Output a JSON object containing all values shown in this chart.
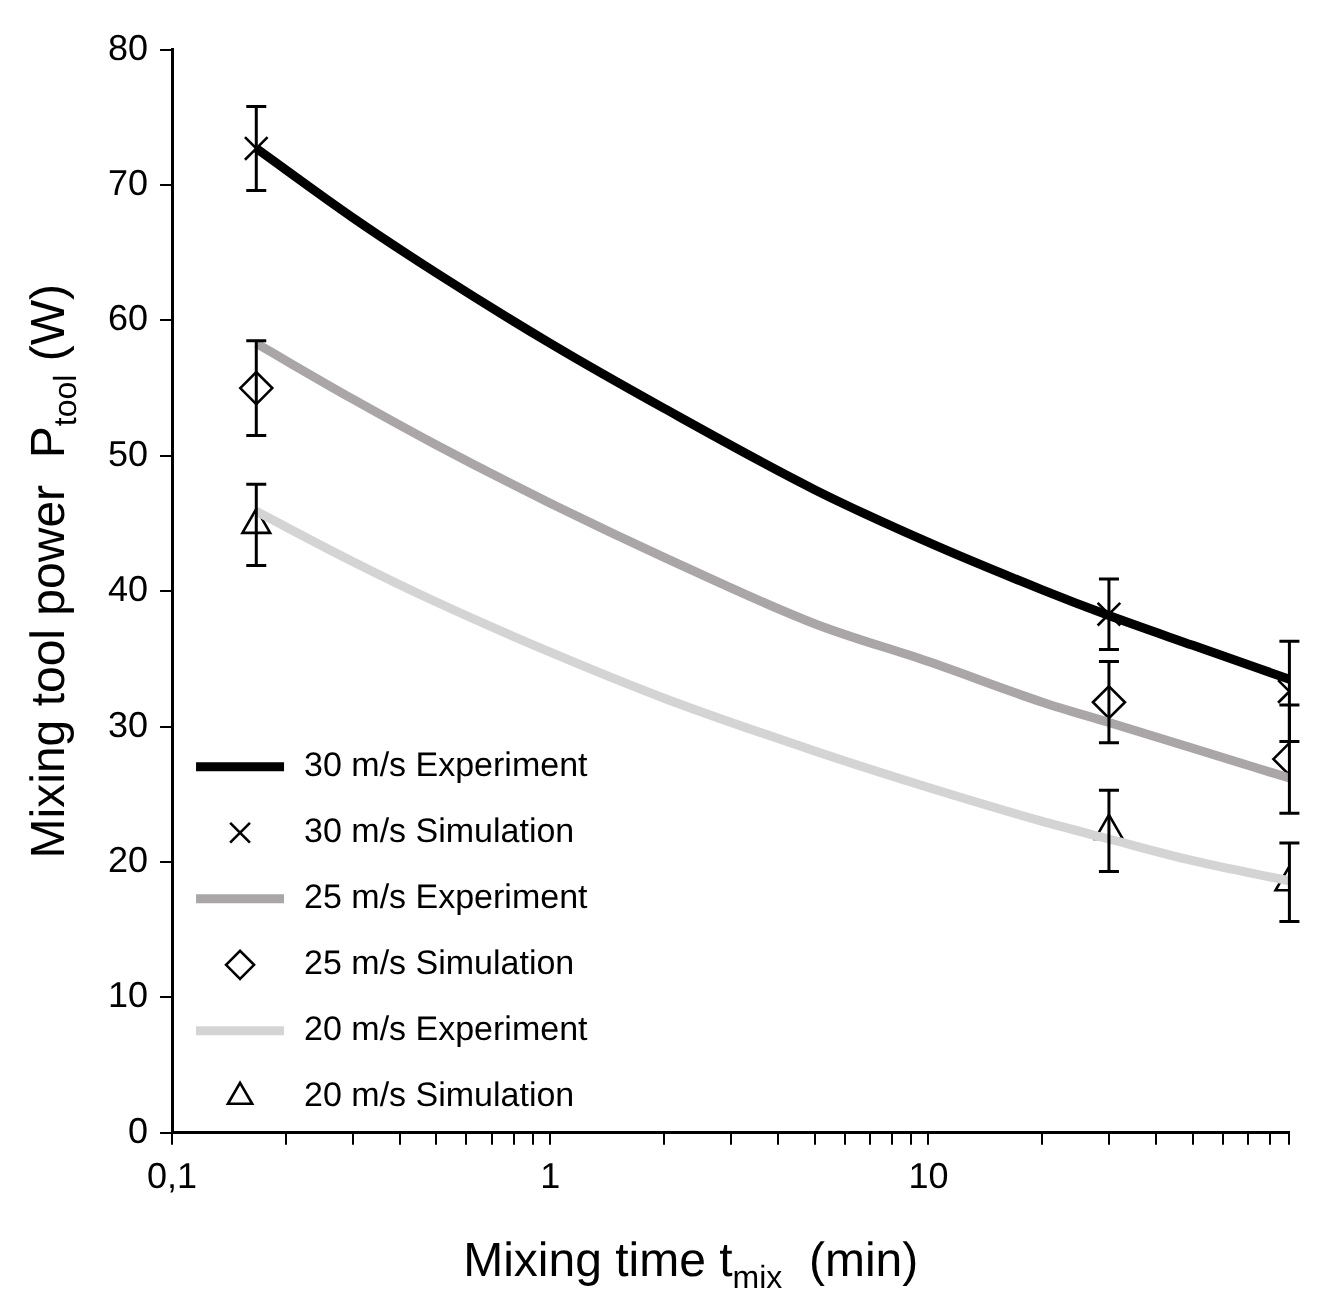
{
  "chart_data": {
    "type": "line",
    "xlabel": "Mixing time t$_{mix}$  (min)",
    "ylabel": "Mixing tool power  P$_{tool}$ (W)",
    "log": "x",
    "grid": false,
    "legend": "bottom left",
    "xlim": [
      0.1,
      90
    ],
    "ylim": [
      0,
      80
    ],
    "xticks": [
      {
        "value": 0.1,
        "label": "0,1"
      },
      {
        "value": 0.2,
        "label": null
      },
      {
        "value": 0.3,
        "label": null
      },
      {
        "value": 0.4,
        "label": null
      },
      {
        "value": 0.5,
        "label": null
      },
      {
        "value": 0.6,
        "label": null
      },
      {
        "value": 0.7,
        "label": null
      },
      {
        "value": 0.8,
        "label": null
      },
      {
        "value": 0.9,
        "label": null
      },
      1,
      {
        "value": 2,
        "label": null
      },
      {
        "value": 3,
        "label": null
      },
      {
        "value": 4,
        "label": null
      },
      {
        "value": 5,
        "label": null
      },
      {
        "value": 6,
        "label": null
      },
      {
        "value": 7,
        "label": null
      },
      {
        "value": 8,
        "label": null
      },
      {
        "value": 9,
        "label": null
      },
      10,
      {
        "value": 20,
        "label": null
      },
      {
        "value": 30,
        "label": null
      },
      {
        "value": 40,
        "label": null
      },
      {
        "value": 50,
        "label": null
      },
      {
        "value": 60,
        "label": null
      },
      {
        "value": 70,
        "label": null
      },
      {
        "value": 80,
        "label": null
      },
      {
        "value": 90,
        "label": null
      }
    ],
    "yticks": [
      0,
      10,
      20,
      30,
      40,
      50,
      60,
      70,
      80
    ],
    "series": [
      {
        "name": "30 m/s Experiment",
        "type": "line",
        "color": "#000000",
        "x": [
          0.167,
          0.3,
          0.5,
          1,
          2,
          5,
          10,
          20,
          30,
          50,
          90
        ],
        "values": [
          72.7,
          67.6,
          63.5,
          58.3,
          53.5,
          47.5,
          43.6,
          40.1,
          38.2,
          36.0,
          33.5
        ]
      },
      {
        "name": "30 m/s Simulation",
        "type": "scatter",
        "marker": "cross",
        "color": "#000000",
        "x": [
          0.167,
          30,
          90
        ],
        "values": [
          72.7,
          38.3,
          32.6
        ],
        "errors": [
          3.1,
          2.6,
          3.7
        ]
      },
      {
        "name": "25 m/s Experiment",
        "type": "line",
        "color": "#aaa6a8",
        "x": [
          0.167,
          0.3,
          0.5,
          1,
          2,
          5,
          10,
          20,
          30,
          50,
          90
        ],
        "values": [
          58.3,
          54.2,
          50.8,
          46.5,
          42.5,
          37.6,
          34.8,
          31.8,
          30.3,
          28.4,
          26.2
        ]
      },
      {
        "name": "25 m/s Simulation",
        "type": "scatter",
        "marker": "diamond",
        "color": "#000000",
        "x": [
          0.167,
          30,
          90
        ],
        "values": [
          55.0,
          31.8,
          27.6
        ],
        "errors": [
          3.5,
          3.0,
          4.0
        ]
      },
      {
        "name": "20 m/s Experiment",
        "type": "line",
        "color": "#d4d4d4",
        "x": [
          0.167,
          0.3,
          0.5,
          1,
          2,
          5,
          10,
          20,
          30,
          50,
          90
        ],
        "values": [
          45.9,
          42.2,
          39.2,
          35.5,
          32.1,
          28.2,
          25.5,
          23.0,
          21.7,
          20.1,
          18.6
        ]
      },
      {
        "name": "20 m/s Simulation",
        "type": "scatter",
        "marker": "triangle",
        "color": "#000000",
        "x": [
          0.167,
          30,
          90
        ],
        "values": [
          44.9,
          22.3,
          18.5
        ],
        "errors": [
          3.0,
          3.0,
          2.9
        ]
      }
    ]
  }
}
